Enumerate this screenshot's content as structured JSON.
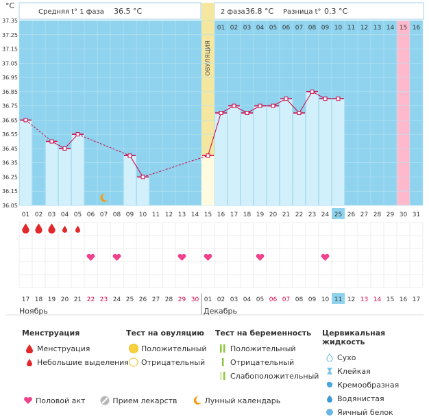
{
  "header": {
    "unit": "°C",
    "phase1_label": "Средняя t° 1 фаза",
    "phase1_value": "36.5 °C",
    "phase2_label": "2 фаза",
    "phase2_value": "36.8 °C",
    "diff_label": "Разница t°",
    "diff_value": "0.3 °C",
    "ovulation_label": "ОВУЛЯЦИЯ"
  },
  "chart_data": {
    "type": "line",
    "ylim": [
      36.05,
      37.35
    ],
    "y_ticks": [
      "37.35",
      "37.25",
      "37.15",
      "37.05",
      "36.95",
      "36.85",
      "36.75",
      "36.65",
      "36.55",
      "36.45",
      "36.35",
      "36.25",
      "36.15",
      "36.05"
    ],
    "cycle_days": [
      "01",
      "02",
      "03",
      "04",
      "05",
      "06",
      "07",
      "08",
      "09",
      "10",
      "11",
      "12",
      "13",
      "14",
      "15",
      "16",
      "17",
      "18",
      "19",
      "20",
      "21",
      "22",
      "23",
      "24",
      "25",
      "26",
      "27",
      "28",
      "29",
      "30",
      "31"
    ],
    "phase2_day_labels": [
      "01",
      "02",
      "03",
      "04",
      "05",
      "06",
      "07",
      "08",
      "09",
      "10",
      "11",
      "12",
      "13",
      "14",
      "15",
      "16"
    ],
    "series": [
      {
        "values": [
          36.65,
          null,
          36.5,
          36.45,
          36.55,
          null,
          null,
          null,
          36.4,
          36.25,
          null,
          null,
          null,
          null,
          36.4,
          36.7,
          36.75,
          36.7,
          36.75,
          36.75,
          36.8,
          36.7,
          36.85,
          36.8,
          36.8,
          null,
          null,
          null,
          null,
          null,
          null
        ]
      }
    ],
    "ovulation_day": 15,
    "highlight_day": 30,
    "today_cycle_day": "25",
    "calendar_dates": [
      "17",
      "18",
      "19",
      "20",
      "21",
      "22",
      "23",
      "24",
      "25",
      "26",
      "27",
      "28",
      "29",
      "30",
      "01",
      "02",
      "03",
      "04",
      "05",
      "06",
      "07",
      "08",
      "09",
      "10",
      "11",
      "12",
      "13",
      "14",
      "15",
      "16",
      "17"
    ],
    "red_date_indices": [
      5,
      6,
      12,
      13,
      19,
      20,
      26,
      27
    ],
    "today_date_index": 24,
    "month1": "Ноябрь",
    "month2": "Декабрь",
    "menstruation_days": [
      1,
      2,
      3,
      4,
      5
    ],
    "menstruation_big": [
      1,
      2,
      3
    ],
    "intercourse_days": [
      6,
      8,
      13,
      15,
      19,
      24
    ],
    "moon_day": 7
  },
  "legend": {
    "menstruation": {
      "title": "Менструация",
      "items": [
        "Менструация",
        "Небольшие выделения"
      ]
    },
    "ovulation_test": {
      "title": "Тест на овуляцию",
      "items": [
        "Положительный",
        "Отрицательный"
      ]
    },
    "pregnancy_test": {
      "title": "Тест на беременность",
      "items": [
        "Положительный",
        "Отрицательный",
        "Слабоположительный"
      ]
    },
    "cervical": {
      "title": "Цервикальная жидкость",
      "items": [
        "Сухо",
        "Клейкая",
        "Кремообразная",
        "Водянистая",
        "Яичный белок"
      ]
    },
    "bottom": [
      "Половой акт",
      "Прием лекарств",
      "Лунный календарь"
    ]
  },
  "colors": {
    "sky": "#8fd3ee",
    "bar": "#d2f0fb",
    "bar_border": "#a8dcee",
    "line": "#cc0044",
    "ovulation": "#f6e7a0",
    "pink": "#ffb9cc",
    "red_text": "#cc0044",
    "heart": "#f0418c",
    "drop": "#e3282b"
  }
}
